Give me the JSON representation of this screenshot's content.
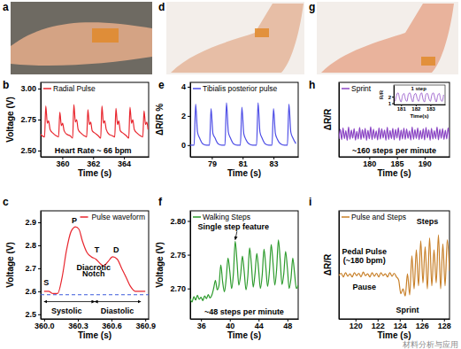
{
  "photos": [
    {
      "panel": "a"
    },
    {
      "panel": "d"
    },
    {
      "panel": "g"
    }
  ],
  "watermark": "材料分析与应用",
  "chart_data": [
    {
      "type": "line",
      "panel": "b",
      "xlabel": "Time (s)",
      "ylabel": "Voltage (V)",
      "x": [
        358.6,
        358.85,
        358.93,
        359.03,
        359.11,
        359.21,
        359.4,
        359.6,
        359.76,
        359.84,
        359.94,
        360.02,
        360.12,
        360.31,
        360.51,
        360.67,
        360.75,
        360.85,
        360.93,
        361.03,
        361.22,
        361.42,
        361.58,
        361.66,
        361.76,
        361.84,
        361.94,
        362.13,
        362.33,
        362.49,
        362.57,
        362.67,
        362.75,
        362.85,
        363.04,
        363.24,
        363.4,
        363.48,
        363.58,
        363.66,
        363.76,
        363.95,
        364.15,
        364.31,
        364.39,
        364.49,
        364.57,
        364.67,
        364.86,
        365.06,
        365.22,
        365.3,
        365.4,
        365.48,
        365.56
      ],
      "series": [
        {
          "name": "Radial Pulse",
          "color": "#e8262e",
          "values": [
            2.63,
            2.61,
            2.86,
            2.72,
            2.74,
            2.67,
            2.64,
            2.62,
            2.61,
            2.81,
            2.7,
            2.72,
            2.66,
            2.63,
            2.62,
            2.6,
            2.87,
            2.73,
            2.75,
            2.67,
            2.64,
            2.62,
            2.61,
            2.83,
            2.71,
            2.73,
            2.66,
            2.64,
            2.62,
            2.6,
            2.86,
            2.72,
            2.74,
            2.67,
            2.63,
            2.62,
            2.61,
            2.84,
            2.71,
            2.74,
            2.66,
            2.64,
            2.62,
            2.6,
            2.85,
            2.72,
            2.75,
            2.67,
            2.64,
            2.62,
            2.61,
            2.82,
            2.71,
            2.73,
            2.67
          ]
        }
      ],
      "xlim": [
        358.6,
        365.6
      ],
      "xticks": [
        360,
        362,
        364
      ],
      "ylim": [
        2.45,
        3.05
      ],
      "yticks": [
        {
          "value": 2.5,
          "label": "2.50"
        },
        2.75,
        {
          "value": 3,
          "label": "3.00"
        }
      ],
      "legend": "upper left",
      "annotations": [
        {
          "text": "Heart Rate ~ 66 bpm",
          "x": 362.0,
          "y": 2.48
        }
      ]
    },
    {
      "type": "line",
      "panel": "c",
      "xlabel": "Time (s)",
      "ylabel": "Voltage (V)",
      "x": [
        360.0,
        360.04,
        360.08,
        360.12,
        360.16,
        360.2,
        360.24,
        360.28,
        360.31,
        360.34,
        360.38,
        360.42,
        360.46,
        360.5,
        360.53,
        360.57,
        360.61,
        360.65,
        360.69,
        360.73,
        360.77,
        360.81,
        360.85,
        360.9
      ],
      "series": [
        {
          "name": "Pulse waveform",
          "color": "#e8262e",
          "values": [
            2.6,
            2.6,
            2.59,
            2.59,
            2.66,
            2.78,
            2.86,
            2.88,
            2.87,
            2.82,
            2.77,
            2.75,
            2.74,
            2.72,
            2.71,
            2.73,
            2.75,
            2.74,
            2.7,
            2.66,
            2.62,
            2.6,
            2.6,
            2.6
          ]
        }
      ],
      "xlim": [
        359.97,
        360.93
      ],
      "xticks": [
        {
          "value": 360,
          "label": "360.0"
        },
        360.3,
        360.6,
        360.9
      ],
      "ylim": [
        2.48,
        2.95
      ],
      "yticks": [
        2.5,
        2.6,
        2.7,
        2.8,
        2.9
      ],
      "legend": "upper right",
      "baseline": 2.585,
      "spans": [
        {
          "from": 360.0,
          "to": 360.45,
          "y": 2.555
        },
        {
          "from": 360.45,
          "to": 360.86,
          "y": 2.555
        }
      ],
      "annotations": [
        {
          "text": "P",
          "x": 360.27,
          "y": 2.895
        },
        {
          "text": "T",
          "x": 360.47,
          "y": 2.77
        },
        {
          "text": "D",
          "x": 360.64,
          "y": 2.77
        },
        {
          "text": "S",
          "x": 360.02,
          "y": 2.625
        },
        {
          "text": "Diacrotic",
          "x": 360.44,
          "y": 2.69
        },
        {
          "text": "Notch",
          "x": 360.44,
          "y": 2.665
        },
        {
          "text": "Systolic",
          "x": 360.2,
          "y": 2.505
        },
        {
          "text": "Diastolic",
          "x": 360.65,
          "y": 2.505
        }
      ]
    },
    {
      "type": "line",
      "panel": "e",
      "xlabel": "Time (s)",
      "ylabel": "ΔR/R %",
      "x": [
        77.6,
        77.85,
        77.95,
        78.07,
        78.2,
        78.4,
        78.65,
        78.85,
        78.95,
        79.07,
        79.2,
        79.4,
        79.65,
        79.85,
        79.95,
        80.07,
        80.2,
        80.4,
        80.65,
        80.85,
        80.95,
        81.07,
        81.2,
        81.4,
        81.65,
        81.9,
        82.0,
        82.12,
        82.25,
        82.45,
        82.7,
        82.9,
        83.0,
        83.12,
        83.25,
        83.45,
        83.7,
        83.9,
        84.0,
        84.12,
        84.25,
        84.45
      ],
      "series": [
        {
          "name": "Tibialis posterior pulse",
          "color": "#4d4de6",
          "values": [
            0.0,
            0.0,
            2.8,
            0.9,
            0.5,
            0.1,
            0.0,
            0.0,
            2.5,
            0.8,
            0.5,
            0.1,
            0.0,
            0.0,
            2.9,
            0.9,
            0.5,
            0.1,
            0.0,
            0.0,
            2.6,
            0.8,
            0.4,
            0.1,
            0.0,
            0.0,
            2.9,
            0.9,
            0.5,
            0.1,
            0.0,
            0.0,
            2.5,
            0.8,
            0.4,
            0.1,
            0.0,
            0.0,
            2.8,
            0.9,
            0.5,
            0.1
          ]
        }
      ],
      "xlim": [
        77.6,
        84.6
      ],
      "xticks": [
        79,
        81,
        83
      ],
      "ylim": [
        -0.8,
        4.3
      ],
      "yticks": [
        0,
        2,
        4
      ],
      "legend": "upper left"
    },
    {
      "type": "line",
      "panel": "f",
      "xlabel": "Time (s)",
      "ylabel": "Voltage (V)",
      "x": [
        34.5,
        34.75,
        35,
        35.25,
        35.5,
        35.75,
        36,
        36.25,
        36.5,
        36.75,
        37,
        37.25,
        37.5,
        37.75,
        38,
        38.25,
        38.5,
        38.75,
        39,
        39.25,
        39.5,
        39.75,
        40,
        40.25,
        40.5,
        40.75,
        41,
        41.25,
        41.5,
        41.75,
        42,
        42.25,
        42.5,
        42.75,
        43,
        43.25,
        43.5,
        43.75,
        44,
        44.25,
        44.5,
        44.75,
        45,
        45.25,
        45.5,
        45.75,
        46,
        46.25,
        46.5,
        46.75,
        47,
        47.25,
        47.5,
        47.75,
        48,
        48.25,
        48.5,
        48.75,
        49,
        49.25,
        49.5
      ],
      "series": [
        {
          "name": "Walking Steps",
          "color": "#2b9a2b",
          "values": [
            2.685,
            2.68,
            2.688,
            2.683,
            2.69,
            2.684,
            2.687,
            2.682,
            2.689,
            2.685,
            2.691,
            2.686,
            2.69,
            2.7,
            2.712,
            2.698,
            2.705,
            2.735,
            2.71,
            2.695,
            2.715,
            2.745,
            2.725,
            2.7,
            2.722,
            2.77,
            2.74,
            2.705,
            2.72,
            2.748,
            2.725,
            2.698,
            2.718,
            2.76,
            2.735,
            2.702,
            2.722,
            2.752,
            2.728,
            2.7,
            2.72,
            2.758,
            2.732,
            2.703,
            2.725,
            2.765,
            2.738,
            2.705,
            2.728,
            2.772,
            2.742,
            2.706,
            2.722,
            2.755,
            2.73,
            2.7,
            2.715,
            2.745,
            2.722,
            2.7,
            2.705
          ]
        }
      ],
      "xlim": [
        34.5,
        49.5
      ],
      "xticks": [
        36,
        40,
        44,
        48
      ],
      "ylim": [
        2.655,
        2.815
      ],
      "yticks": [
        {
          "value": 2.7,
          "label": "2.70"
        },
        2.75,
        {
          "value": 2.8,
          "label": "2.80"
        }
      ],
      "legend": "upper left",
      "annotations": [
        {
          "text": "Single step feature",
          "x": 40.5,
          "y": 2.787,
          "point": [
            40.75,
            2.771
          ]
        },
        {
          "text": "~48 steps per minute",
          "x": 42.0,
          "y": 2.662
        }
      ]
    },
    {
      "type": "line",
      "panel": "h",
      "xlabel": "Time (s)",
      "ylabel": "ΔR/R",
      "x": [
        174.5,
        174.75,
        175,
        175.25,
        175.5,
        175.75,
        176,
        176.25,
        176.5,
        176.75,
        177,
        177.25,
        177.5,
        177.75,
        178,
        178.25,
        178.5,
        178.75,
        179,
        179.25,
        179.5,
        179.75,
        180,
        180.25,
        180.5,
        180.75,
        181,
        181.25,
        181.5,
        181.75,
        182,
        182.25,
        182.5,
        182.75,
        183,
        183.25,
        183.5,
        183.75,
        184,
        184.25,
        184.5,
        184.75,
        185,
        185.25,
        185.5,
        185.75,
        186,
        186.25,
        186.5,
        186.75,
        187,
        187.25,
        187.5,
        187.75,
        188,
        188.25,
        188.5,
        188.75,
        189,
        189.25,
        189.5,
        189.75,
        190,
        190.25,
        190.5,
        190.75,
        191,
        191.25,
        191.5,
        191.75,
        192,
        192.25,
        192.5,
        192.75,
        193,
        193.25,
        193.5,
        193.75,
        194,
        194.25,
        194.5
      ],
      "series": [
        {
          "name": "Sprint",
          "color": "#8b46c4",
          "values": [
            0.4,
            1.05,
            0.35,
            1.15,
            0.42,
            0.95,
            0.3,
            1.2,
            0.38,
            1.0,
            0.45,
            1.1,
            0.32,
            0.9,
            0.4,
            1.18,
            0.36,
            1.02,
            0.44,
            1.12,
            0.3,
            0.98,
            0.41,
            1.22,
            0.35,
            1.06,
            0.43,
            0.94,
            0.33,
            1.15,
            0.39,
            1.08,
            0.46,
            1.0,
            0.31,
            1.19,
            0.37,
            0.96,
            0.42,
            1.11,
            0.34,
            1.04,
            0.45,
            1.16,
            0.3,
            0.99,
            0.4,
            1.13,
            0.36,
            1.07,
            0.44,
            0.93,
            0.32,
            1.21,
            0.38,
            1.03,
            0.43,
            1.14,
            0.35,
            0.97,
            0.41,
            1.09,
            0.33,
            1.17,
            0.46,
            1.01,
            0.31,
            1.12,
            0.39,
            0.95,
            0.42,
            1.2,
            0.34,
            1.05,
            0.44,
            1.1,
            0.36,
            0.98,
            0.4,
            1.15,
            0.38
          ]
        }
      ],
      "xlim": [
        174.5,
        194.5
      ],
      "xticks": [
        180,
        185,
        190
      ],
      "ylim": [
        -0.8,
        4.2
      ],
      "tick_labels": "x",
      "legend": "upper left",
      "annotations": [
        {
          "text": "~160 steps per minute",
          "x": 184.5,
          "y": -0.55
        }
      ],
      "inset": {
        "type": "line",
        "xlabel": "Time(s)",
        "ylabel": "R/R",
        "x": [
          180.6,
          180.7,
          180.8,
          180.9,
          181.0,
          181.1,
          181.2,
          181.3,
          181.4,
          181.5,
          181.6,
          181.7,
          181.8,
          181.9,
          182.0,
          182.1,
          182.2,
          182.3,
          182.4,
          182.5,
          182.6,
          182.7,
          182.8,
          182.9,
          183.0,
          183.1,
          183.2,
          183.3,
          183.4,
          183.5,
          183.6,
          183.7,
          183.8,
          183.9
        ],
        "series": [
          {
            "color": "#8b46c4",
            "values": [
              1.3,
              2.3,
              2.6,
              1.7,
              1.2,
              2.2,
              2.5,
              1.6,
              1.3,
              2.4,
              2.6,
              1.8,
              1.2,
              2.3,
              2.5,
              1.7,
              1.3,
              2.2,
              2.6,
              1.6,
              1.2,
              2.4,
              2.5,
              1.7,
              1.3,
              2.3,
              2.6,
              1.8,
              1.2,
              2.2,
              2.5,
              1.6,
              1.3,
              2.3
            ]
          }
        ],
        "xlim": [
          180.5,
          184
        ],
        "xticks": [
          181,
          182,
          183
        ],
        "ylim": [
          0.8,
          3.8
        ],
        "yticks": [
          1,
          2
        ],
        "annotations": [
          {
            "text": "1 step",
            "x": 182.2,
            "y": 3.05
          }
        ]
      }
    },
    {
      "type": "line",
      "panel": "i",
      "xlabel": "Time (s)",
      "ylabel": "ΔR/R",
      "x": [
        118.5,
        118.7,
        118.9,
        119.1,
        119.3,
        119.5,
        119.7,
        119.9,
        120.1,
        120.3,
        120.5,
        120.7,
        120.9,
        121.1,
        121.3,
        121.5,
        121.7,
        121.9,
        122.1,
        122.3,
        122.5,
        122.7,
        122.9,
        123.1,
        123.3,
        123.5,
        123.7,
        123.9,
        124.1,
        124.3,
        124.5,
        124.7,
        124.9,
        125.1,
        125.3,
        125.5,
        125.7,
        125.9,
        126.1,
        126.3,
        126.5,
        126.7,
        126.9,
        127.1,
        127.3,
        127.5,
        127.7,
        127.9,
        128.1,
        128.3,
        128.5
      ],
      "series": [
        {
          "name": "Pulse and Steps",
          "color": "#c8802a",
          "values": [
            0.52,
            0.56,
            0.5,
            0.57,
            0.51,
            0.55,
            0.5,
            0.57,
            0.52,
            0.56,
            0.5,
            0.58,
            0.52,
            0.55,
            0.5,
            0.57,
            0.51,
            0.56,
            0.5,
            0.57,
            0.52,
            0.55,
            0.5,
            0.57,
            0.51,
            0.56,
            0.5,
            0.45,
            0.22,
            0.3,
            0.18,
            0.55,
            0.2,
            0.85,
            0.3,
            0.95,
            0.35,
            1.1,
            0.4,
            1.0,
            0.3,
            1.15,
            0.35,
            0.95,
            0.4,
            1.2,
            0.3,
            1.05,
            0.35,
            1.12,
            0.6
          ]
        }
      ],
      "xlim": [
        118.5,
        128.5
      ],
      "xticks": [
        120,
        122,
        124,
        126,
        128
      ],
      "ylim": [
        -0.2,
        1.6
      ],
      "tick_labels": "x",
      "legend": "upper left",
      "annotations": [
        {
          "text": "Pedal Pulse",
          "x": 120.8,
          "y": 0.88
        },
        {
          "text": "(~180 bpm)",
          "x": 120.8,
          "y": 0.73
        },
        {
          "text": "Pause",
          "x": 120.8,
          "y": 0.28
        },
        {
          "text": "Sprint",
          "x": 124.7,
          "y": -0.1
        },
        {
          "text": "Steps",
          "x": 126.5,
          "y": 1.38
        }
      ]
    }
  ]
}
